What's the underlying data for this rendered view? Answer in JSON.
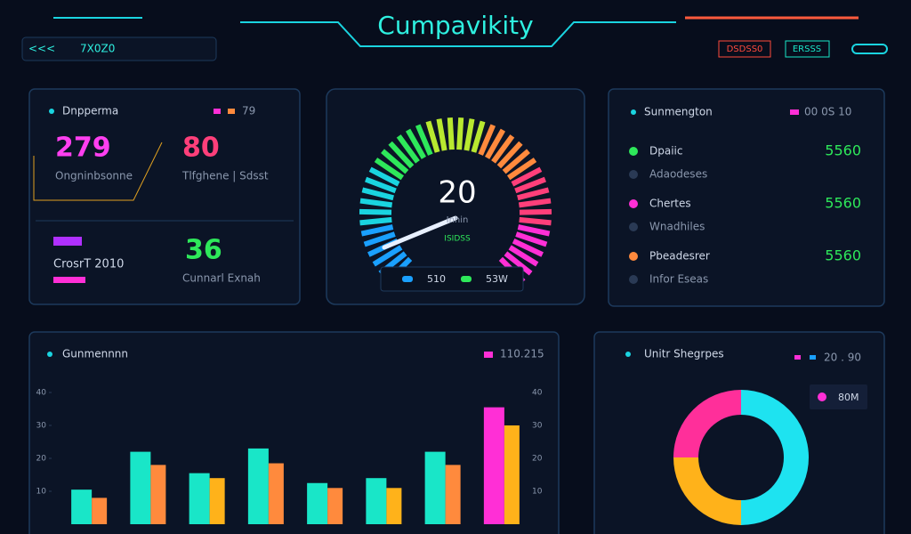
{
  "header": {
    "title": "Cumpavikity",
    "nav_icon": "<<<",
    "nav_label": "7X0Z0",
    "buttons": [
      "DSDSS0",
      "ERSSS"
    ]
  },
  "panel_stats": {
    "title": "Dnpperma",
    "legend": "79",
    "stats": [
      {
        "value": "279",
        "label": "Ongninbsonne"
      },
      {
        "value": "80",
        "label": "Tlfghene | Sdsst"
      },
      {
        "value": "CrosrT 2010",
        "label": ""
      },
      {
        "value": "36",
        "label": "Cunnarl Exnah"
      }
    ]
  },
  "gauge": {
    "value": "20",
    "unit": "Inhin",
    "sub": "ISIDSS",
    "legend": [
      "510",
      "53W"
    ]
  },
  "panel_list": {
    "title": "Sunmengton",
    "legend": "00 0S 10",
    "rows": [
      {
        "label": "Dpaiic",
        "value": "5560"
      },
      {
        "label": "Adaodeses"
      },
      {
        "label": "Chertes",
        "value": "5560"
      },
      {
        "label": "Wnadhiles"
      },
      {
        "label": "Pbeadesrer",
        "value": "5560"
      },
      {
        "label": "Infor Eseas"
      }
    ]
  },
  "bar_chart": {
    "type": "bar",
    "title": "Gunmennnn",
    "legend": "110.215",
    "categories": [
      null,
      null,
      null,
      null,
      null,
      null,
      null,
      null
    ],
    "series": [
      {
        "colors": [
          "#19e6c8",
          "#19e6c8",
          "#19e6c8",
          "#19e6c8",
          "#19e6c8",
          "#19e6c8",
          "#19e6c8",
          "#ff2fd6"
        ],
        "values": [
          10.5,
          22,
          15.5,
          23,
          12.5,
          14,
          22,
          35.5
        ]
      },
      {
        "colors": [
          "#ff8a3d",
          "#ff8a3d",
          "#ffb21a",
          "#ff8a3d",
          "#ff8a3d",
          "#ffb21a",
          "#ff8a3d",
          "#ffb21a"
        ],
        "values": [
          8,
          18,
          14,
          18.5,
          11,
          11,
          18,
          30
        ]
      }
    ],
    "ylim": [
      0,
      40
    ],
    "yticks": [
      10,
      20,
      30,
      40
    ]
  },
  "donut_chart": {
    "type": "pie",
    "title": "Unitr Shegrpes",
    "legend": "20 . 90",
    "badge": "80M",
    "values": [
      50,
      25,
      25
    ],
    "colors": [
      "#1ee3f0",
      "#ffb21a",
      "#ff2f9a"
    ]
  }
}
